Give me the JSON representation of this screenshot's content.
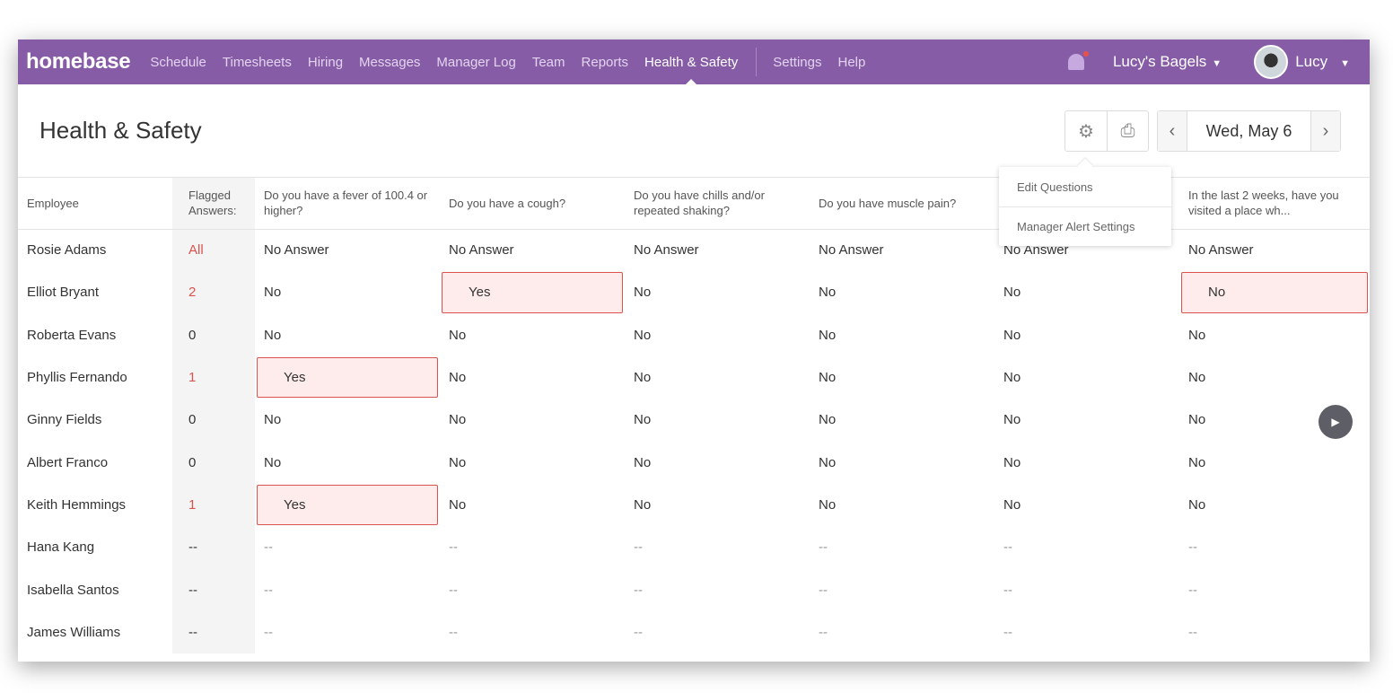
{
  "nav": {
    "logo": "homebase",
    "items": [
      "Schedule",
      "Timesheets",
      "Hiring",
      "Messages",
      "Manager Log",
      "Team",
      "Reports",
      "Health & Safety"
    ],
    "active": "Health & Safety",
    "secondary": [
      "Settings",
      "Help"
    ],
    "location": "Lucy's Bagels",
    "user": "Lucy"
  },
  "page": {
    "title": "Health & Safety",
    "date": "Wed, May 6"
  },
  "menu": [
    "Edit Questions",
    "Manager Alert Settings"
  ],
  "table": {
    "headers": [
      "Employee",
      "Flagged Answers:",
      "Do you have a fever of 100.4 or higher?",
      "Do you have a cough?",
      "Do you have chills and/or repeated shaking?",
      "Do you have muscle pain?",
      "",
      "In the last 2 weeks, have you visited a place wh..."
    ],
    "rows": [
      {
        "name": "Rosie Adams",
        "flagged": "All",
        "answers": [
          "No Answer",
          "No Answer",
          "No Answer",
          "No Answer",
          "No Answer",
          "No Answer"
        ],
        "flags": []
      },
      {
        "name": "Elliot Bryant",
        "flagged": "2",
        "answers": [
          "No",
          "Yes",
          "No",
          "No",
          "No",
          "No"
        ],
        "flags": [
          1,
          5
        ]
      },
      {
        "name": "Roberta Evans",
        "flagged": "0",
        "answers": [
          "No",
          "No",
          "No",
          "No",
          "No",
          "No"
        ],
        "flags": []
      },
      {
        "name": "Phyllis Fernando",
        "flagged": "1",
        "answers": [
          "Yes",
          "No",
          "No",
          "No",
          "No",
          "No"
        ],
        "flags": [
          0
        ]
      },
      {
        "name": "Ginny Fields",
        "flagged": "0",
        "answers": [
          "No",
          "No",
          "No",
          "No",
          "No",
          "No"
        ],
        "flags": []
      },
      {
        "name": "Albert Franco",
        "flagged": "0",
        "answers": [
          "No",
          "No",
          "No",
          "No",
          "No",
          "No"
        ],
        "flags": []
      },
      {
        "name": "Keith Hemmings",
        "flagged": "1",
        "answers": [
          "Yes",
          "No",
          "No",
          "No",
          "No",
          "No"
        ],
        "flags": [
          0
        ]
      },
      {
        "name": "Hana Kang",
        "flagged": "--",
        "answers": [
          "--",
          "--",
          "--",
          "--",
          "--",
          "--"
        ],
        "flags": []
      },
      {
        "name": "Isabella Santos",
        "flagged": "--",
        "answers": [
          "--",
          "--",
          "--",
          "--",
          "--",
          "--"
        ],
        "flags": []
      },
      {
        "name": "James Williams",
        "flagged": "--",
        "answers": [
          "--",
          "--",
          "--",
          "--",
          "--",
          "--"
        ],
        "flags": []
      }
    ]
  },
  "colors": {
    "brand": "#875ca7",
    "flag": "#d9534f"
  }
}
